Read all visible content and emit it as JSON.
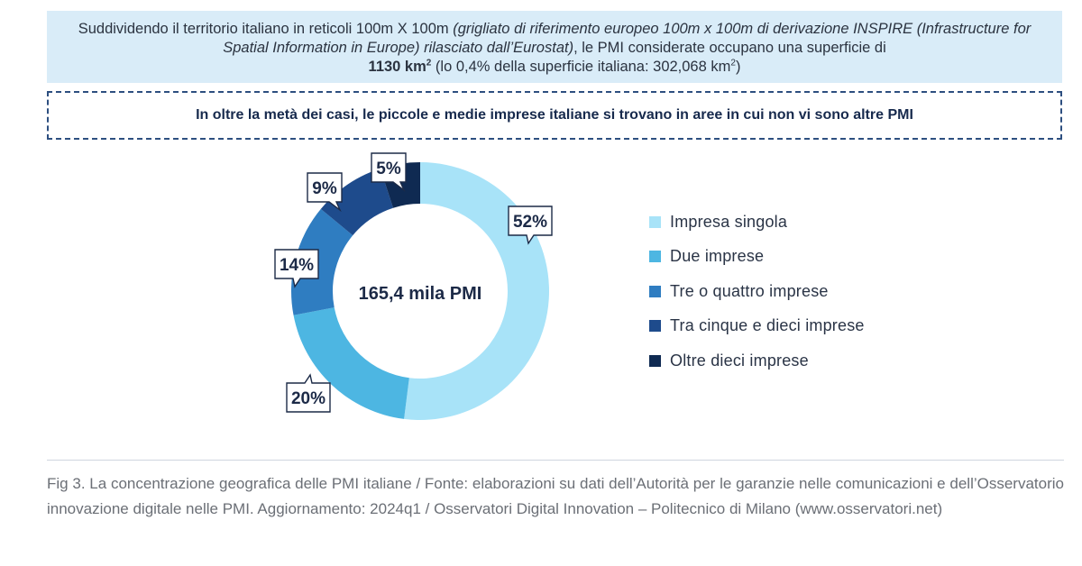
{
  "header": {
    "intro_1": "Suddividendo il territorio italiano in reticoli 100m X 100m ",
    "intro_2_italic": "(grigliato di riferimento europeo 100m x 100m di derivazione INSPIRE (Infrastructure for Spatial Information in Europe) rilasciato dall’Eurostat)",
    "intro_3": ", le PMI considerate occupano una superficie di ",
    "intro_4_bold": "1130 km",
    "intro_4_sup": "2",
    "intro_5": " (lo 0,4% della superficie italiana: 302,068 km",
    "intro_5_sup": "2",
    "intro_6": ")"
  },
  "highlight": "In oltre la metà dei casi, le piccole e medie imprese italiane si trovano in aree in cui non vi sono altre PMI",
  "chart_data": {
    "type": "pie",
    "donut": true,
    "center_label": "165,4 mila PMI",
    "categories": [
      "Impresa singola",
      "Due imprese",
      "Tre o quattro imprese",
      "Tra cinque e dieci imprese",
      "Oltre dieci imprese"
    ],
    "values": [
      52,
      20,
      14,
      9,
      5
    ],
    "value_labels": [
      "52%",
      "20%",
      "14%",
      "9%",
      "5%"
    ],
    "colors": [
      "#a8e3f8",
      "#4db6e2",
      "#2f7dc1",
      "#1e4b8c",
      "#0f2a52"
    ],
    "legend_position": "right"
  },
  "caption": "Fig 3. La concentrazione geografica delle PMI italiane / Fonte: elaborazioni su dati dell’Autorità per le garanzie nelle comunicazioni e dell’Osservatorio innovazione digitale nelle PMI. Aggiornamento: 2024q1 / Osservatori Digital Innovation – Politecnico di Milano (www.osservatori.net)"
}
